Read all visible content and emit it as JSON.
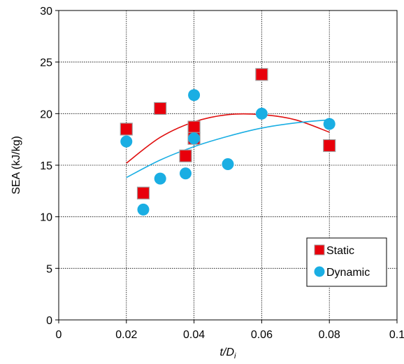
{
  "chart_data": {
    "type": "scatter",
    "xlabel_main": "t/D",
    "xlabel_sub": "i",
    "ylabel": "SEA (kJ/kg)",
    "xlim": [
      0,
      0.1
    ],
    "ylim": [
      0,
      30
    ],
    "x_ticks": [
      0,
      0.02,
      0.04,
      0.06,
      0.08,
      0.1
    ],
    "x_tick_labels": [
      "0",
      "0.02",
      "0.04",
      "0.06",
      "0.08",
      "0.1"
    ],
    "y_ticks": [
      0,
      5,
      10,
      15,
      20,
      25,
      30
    ],
    "y_tick_labels": [
      "0",
      "5",
      "10",
      "15",
      "20",
      "25",
      "30"
    ],
    "grid": true,
    "legend_position": "bottom-right",
    "series": [
      {
        "name": "Static",
        "marker": "square",
        "color": "#e8000b",
        "edge_color": "#a0a0a0",
        "points": [
          {
            "x": 0.02,
            "y": 18.5
          },
          {
            "x": 0.025,
            "y": 12.3
          },
          {
            "x": 0.03,
            "y": 20.5
          },
          {
            "x": 0.0375,
            "y": 15.9
          },
          {
            "x": 0.04,
            "y": 18.7
          },
          {
            "x": 0.04,
            "y": 17.6
          },
          {
            "x": 0.06,
            "y": 23.8
          },
          {
            "x": 0.08,
            "y": 16.9
          }
        ],
        "trend": {
          "color": "#e01010",
          "x_range": [
            0.02,
            0.08
          ],
          "points": [
            {
              "x": 0.02,
              "y": 15.2
            },
            {
              "x": 0.03,
              "y": 17.7
            },
            {
              "x": 0.04,
              "y": 19.2
            },
            {
              "x": 0.05,
              "y": 19.9
            },
            {
              "x": 0.06,
              "y": 19.9
            },
            {
              "x": 0.07,
              "y": 19.4
            },
            {
              "x": 0.08,
              "y": 18.2
            }
          ]
        }
      },
      {
        "name": "Dynamic",
        "marker": "circle",
        "color": "#1aaee3",
        "points": [
          {
            "x": 0.02,
            "y": 17.3
          },
          {
            "x": 0.025,
            "y": 10.7
          },
          {
            "x": 0.03,
            "y": 13.7
          },
          {
            "x": 0.0375,
            "y": 14.2
          },
          {
            "x": 0.04,
            "y": 21.8
          },
          {
            "x": 0.04,
            "y": 17.6
          },
          {
            "x": 0.05,
            "y": 15.1
          },
          {
            "x": 0.06,
            "y": 20.0
          },
          {
            "x": 0.08,
            "y": 19.0
          }
        ],
        "trend": {
          "color": "#1aaee3",
          "x_range": [
            0.02,
            0.08
          ],
          "points": [
            {
              "x": 0.02,
              "y": 13.8
            },
            {
              "x": 0.03,
              "y": 15.5
            },
            {
              "x": 0.04,
              "y": 16.8
            },
            {
              "x": 0.05,
              "y": 17.8
            },
            {
              "x": 0.06,
              "y": 18.6
            },
            {
              "x": 0.07,
              "y": 19.1
            },
            {
              "x": 0.08,
              "y": 19.4
            }
          ]
        }
      }
    ]
  }
}
